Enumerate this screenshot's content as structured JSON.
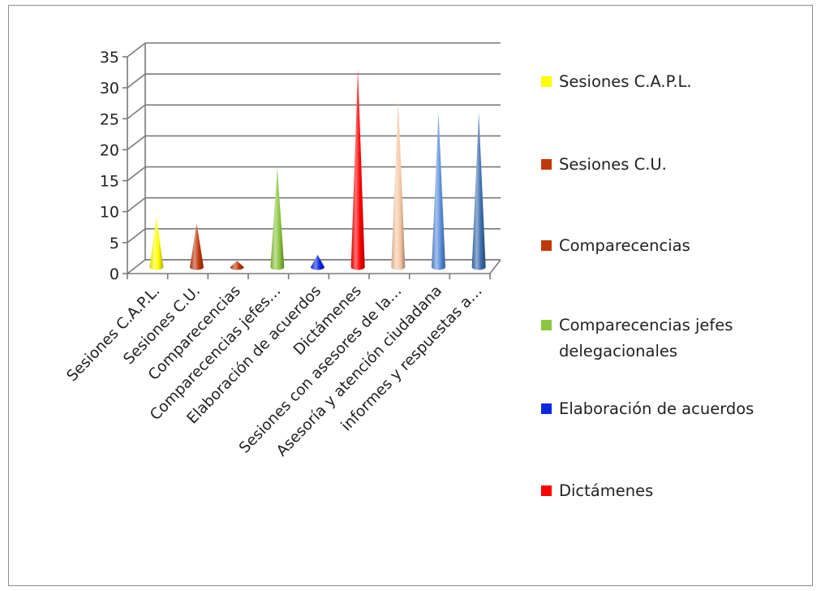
{
  "chart_data": {
    "type": "bar",
    "style": "3d-cone",
    "categories": [
      "Sesiones C.A.P.L.",
      "Sesiones C.U.",
      "Comparecencias",
      "Comparecencias jefes…",
      "Elaboración de acuerdos",
      "Dictámenes",
      "Sesiones con asesores de la…",
      "Asesoría y atención ciudadana",
      "informes y respuestas a…"
    ],
    "values": [
      8,
      7,
      1,
      16,
      2,
      32,
      27,
      25,
      25
    ],
    "colors": [
      "#ffff00",
      "#c0390b",
      "#c0390b",
      "#8cc63f",
      "#0b28e0",
      "#ff0000",
      "#f6c8a4",
      "#5b8fdc",
      "#3d6fae"
    ],
    "ylim": [
      0,
      35
    ],
    "yticks": [
      "0",
      "5",
      "10",
      "15",
      "20",
      "25",
      "30",
      "35"
    ],
    "grid": true,
    "legend_position": "right",
    "legend": [
      {
        "label": "Sesiones C.A.P.L.",
        "color": "#ffff00"
      },
      {
        "label": "Sesiones C.U.",
        "color": "#c0390b"
      },
      {
        "label": "Comparecencias",
        "color": "#c0390b"
      },
      {
        "label": "Comparecencias jefes delegacionales",
        "lines": [
          "Comparecencias jefes",
          "delegacionales"
        ],
        "color": "#8cc63f"
      },
      {
        "label": "Elaboración de acuerdos",
        "color": "#0b28e0"
      },
      {
        "label": "Dictámenes",
        "color": "#ff0000"
      }
    ]
  }
}
